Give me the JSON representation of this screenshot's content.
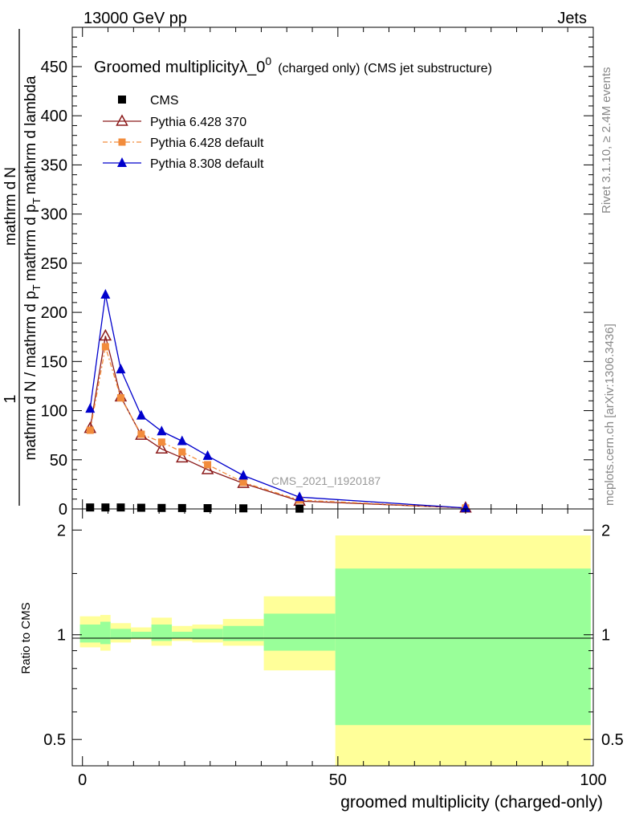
{
  "header": {
    "left": "13000 GeV pp",
    "right": "Jets"
  },
  "side_text": {
    "rivet": "Rivet 3.1.10, ≥ 2.4M events",
    "mcplots": "mcplots.cern.ch [arXiv:1306.3436]"
  },
  "colors": {
    "cms": "#000000",
    "pythia6_370": "#8b1a1a",
    "pythia6_default": "#f28c3c",
    "pythia8": "#0000cc",
    "band_inner": "#99ff99",
    "band_outer": "#ffff99"
  },
  "chart_data": [
    {
      "type": "line",
      "title": "Groomed multiplicityλ_0",
      "title_superscript": "0",
      "title_suffix_small": "(charged only) (CMS jet substructure)",
      "watermark": "CMS_2021_I1920187",
      "ylabel_numerator": "1",
      "ylabel_denominator": "mathrm d N / mathrm d p",
      "ylabel_num2": "mathrm d",
      "ylabel_line1": "mathrm d",
      "ylabel_line1_sub": "T",
      "ylabel_line1_rest": "mathrm d p",
      "ylabel_line1_sub2": "T",
      "ylabel_line1_end": "mathrm d lambda",
      "ylabel_num_end": "N",
      "xlim": [
        -2,
        100
      ],
      "ylim": [
        0,
        490
      ],
      "yticks": [
        0,
        50,
        100,
        150,
        200,
        250,
        300,
        350,
        400,
        450
      ],
      "legend_position": "top-left",
      "series": [
        {
          "name": "CMS",
          "key": "cms",
          "marker": "square",
          "x": [
            1.5,
            4.5,
            7.5,
            11.5,
            15.5,
            19.5,
            24.5,
            31.5,
            42.5
          ],
          "y": [
            1.5,
            1.5,
            1.5,
            1.2,
            1.0,
            0.9,
            0.8,
            0.6,
            0.3
          ]
        },
        {
          "name": "Pythia 6.428 370",
          "key": "pythia6_370",
          "marker": "open-triangle",
          "x": [
            1.5,
            4.5,
            7.5,
            11.5,
            15.5,
            19.5,
            24.5,
            31.5,
            42.5,
            75
          ],
          "y": [
            82,
            176,
            114,
            75,
            61,
            52,
            40,
            26,
            8,
            1
          ]
        },
        {
          "name": "Pythia 6.428 default",
          "key": "pythia6_default",
          "marker": "square-small",
          "x": [
            1.5,
            4.5,
            7.5,
            11.5,
            15.5,
            19.5,
            24.5,
            31.5,
            42.5,
            75
          ],
          "y": [
            80,
            165,
            113,
            76,
            68,
            58,
            45,
            27,
            9,
            1
          ]
        },
        {
          "name": "Pythia 8.308 default",
          "key": "pythia8",
          "marker": "filled-triangle",
          "x": [
            1.5,
            4.5,
            7.5,
            11.5,
            15.5,
            19.5,
            24.5,
            31.5,
            42.5,
            75
          ],
          "y": [
            102,
            218,
            142,
            95,
            79,
            69,
            54,
            34,
            12,
            1
          ]
        }
      ]
    },
    {
      "type": "area",
      "ylabel": "Ratio to CMS",
      "xlabel": "groomed multiplicity (charged-only)",
      "xlim": [
        -2,
        100
      ],
      "ylim": [
        0.42,
        2.3
      ],
      "yticks": [
        0.5,
        1,
        2
      ],
      "xticks": [
        0,
        50,
        100
      ],
      "bins": [
        {
          "lo": -0.5,
          "hi": 3.5,
          "inner": [
            0.95,
            1.07
          ],
          "outer": [
            0.92,
            1.13
          ]
        },
        {
          "lo": 3.5,
          "hi": 5.5,
          "inner": [
            0.94,
            1.09
          ],
          "outer": [
            0.9,
            1.14
          ]
        },
        {
          "lo": 5.5,
          "hi": 9.5,
          "inner": [
            0.97,
            1.04
          ],
          "outer": [
            0.95,
            1.08
          ]
        },
        {
          "lo": 9.5,
          "hi": 13.5,
          "inner": [
            0.98,
            1.02
          ],
          "outer": [
            0.97,
            1.05
          ]
        },
        {
          "lo": 13.5,
          "hi": 17.5,
          "inner": [
            0.96,
            1.07
          ],
          "outer": [
            0.93,
            1.12
          ]
        },
        {
          "lo": 17.5,
          "hi": 21.5,
          "inner": [
            0.98,
            1.02
          ],
          "outer": [
            0.96,
            1.06
          ]
        },
        {
          "lo": 21.5,
          "hi": 27.5,
          "inner": [
            0.97,
            1.04
          ],
          "outer": [
            0.95,
            1.07
          ]
        },
        {
          "lo": 27.5,
          "hi": 35.5,
          "inner": [
            0.96,
            1.06
          ],
          "outer": [
            0.93,
            1.11
          ]
        },
        {
          "lo": 35.5,
          "hi": 49.5,
          "inner": [
            0.9,
            1.15
          ],
          "outer": [
            0.79,
            1.29
          ]
        },
        {
          "lo": 49.5,
          "hi": 99.5,
          "inner": [
            0.55,
            1.55
          ],
          "outer": [
            0.42,
            1.93
          ]
        }
      ]
    }
  ]
}
